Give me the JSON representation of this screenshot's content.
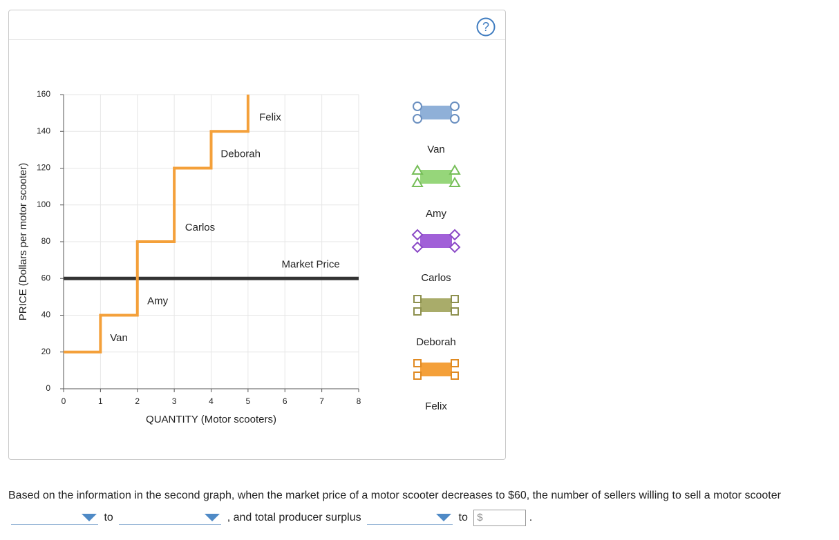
{
  "help": {
    "label": "?"
  },
  "chart_data": {
    "type": "line",
    "subtype": "step-supply",
    "title": "",
    "xlabel": "QUANTITY (Motor scooters)",
    "ylabel": "PRICE (Dollars per motor scooter)",
    "xlim": [
      0,
      8
    ],
    "ylim": [
      0,
      160
    ],
    "xticks": [
      0,
      1,
      2,
      3,
      4,
      5,
      6,
      7,
      8
    ],
    "yticks": [
      0,
      20,
      40,
      60,
      80,
      100,
      120,
      140,
      160
    ],
    "grid": true,
    "supply_steps": [
      {
        "seller": "Van",
        "quantity": [
          0,
          1
        ],
        "price": 20
      },
      {
        "seller": "Amy",
        "quantity": [
          1,
          2
        ],
        "price": 40
      },
      {
        "seller": "Carlos",
        "quantity": [
          2,
          3
        ],
        "price": 80
      },
      {
        "seller": "Deborah",
        "quantity": [
          3,
          4
        ],
        "price": 120
      },
      {
        "seller": "Felix",
        "quantity": [
          4,
          5
        ],
        "price": 140
      }
    ],
    "supply_color": "#f4a03a",
    "market_price": {
      "label": "Market Price",
      "value": 60,
      "color": "#333333"
    },
    "step_labels": [
      {
        "text": "Van",
        "x": 1.5,
        "y": 26
      },
      {
        "text": "Amy",
        "x": 2.55,
        "y": 46
      },
      {
        "text": "Carlos",
        "x": 3.7,
        "y": 86
      },
      {
        "text": "Deborah",
        "x": 4.8,
        "y": 126
      },
      {
        "text": "Felix",
        "x": 5.6,
        "y": 146
      },
      {
        "text": "Market Price",
        "x": 6.7,
        "y": 66
      }
    ],
    "legend_position": "right",
    "legend": [
      {
        "name": "Van",
        "color": "#8fb0d8",
        "border": "#6a8fc0",
        "marker": "circle"
      },
      {
        "name": "Amy",
        "color": "#96d67a",
        "border": "#76be58",
        "marker": "triangle"
      },
      {
        "name": "Carlos",
        "color": "#a160d8",
        "border": "#8a48c6",
        "marker": "diamond"
      },
      {
        "name": "Deborah",
        "color": "#a9ac6a",
        "border": "#8d904e",
        "marker": "square"
      },
      {
        "name": "Felix",
        "color": "#f4a03a",
        "border": "#e08a22",
        "marker": "square"
      }
    ]
  },
  "question": {
    "part1": "Based on the information in the second graph, when the market price of a motor scooter decreases to $60, the number of sellers willing to sell a motor scooter",
    "part2": "to",
    "part3": ", and total producer surplus",
    "part4": "to",
    "currency": "$",
    "end": "."
  }
}
